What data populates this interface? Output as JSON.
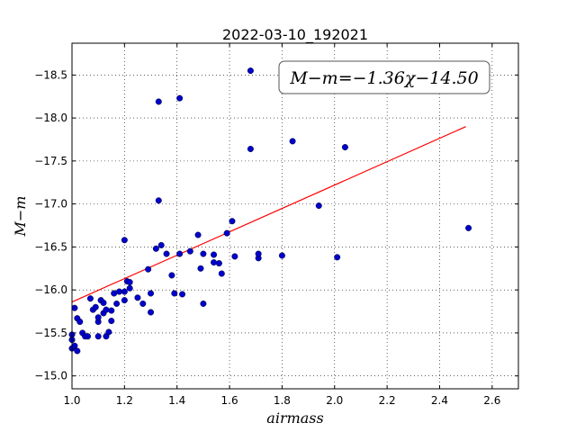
{
  "chart_data": {
    "type": "scatter",
    "title": "2022-03-10_192021",
    "xlabel": "airmass",
    "ylabel": "M−m",
    "xlim": [
      1.0,
      2.7
    ],
    "ylim": [
      -18.87,
      -14.85
    ],
    "y_inverted": true,
    "x_ticks": [
      1.0,
      1.2,
      1.4,
      1.6,
      1.8,
      2.0,
      2.2,
      2.4,
      2.6
    ],
    "x_tick_labels": [
      "1.0",
      "1.2",
      "1.4",
      "1.6",
      "1.8",
      "2.0",
      "2.2",
      "2.4",
      "2.6"
    ],
    "y_ticks": [
      -15.0,
      -15.5,
      -16.0,
      -16.5,
      -17.0,
      -17.5,
      -18.0,
      -18.5
    ],
    "y_tick_labels": [
      "−15.0",
      "−15.5",
      "−16.0",
      "−16.5",
      "−17.0",
      "−17.5",
      "−18.0",
      "−18.5"
    ],
    "grid": true,
    "annotation": "M−m=−1.36χ−14.50",
    "annotation_position": "top-right",
    "fit": {
      "slope": -1.36,
      "intercept": -14.5,
      "x_range": [
        1.0,
        2.5
      ],
      "color": "#ff0000"
    },
    "marker_color": "#0000cc",
    "points": [
      [
        1.0,
        -15.32
      ],
      [
        1.0,
        -15.42
      ],
      [
        1.01,
        -15.35
      ],
      [
        1.02,
        -15.29
      ],
      [
        1.0,
        -15.48
      ],
      [
        1.01,
        -15.79
      ],
      [
        1.02,
        -15.67
      ],
      [
        1.03,
        -15.63
      ],
      [
        1.04,
        -15.5
      ],
      [
        1.05,
        -15.46
      ],
      [
        1.06,
        -15.46
      ],
      [
        1.07,
        -15.9
      ],
      [
        1.08,
        -15.77
      ],
      [
        1.09,
        -15.8
      ],
      [
        1.1,
        -15.63
      ],
      [
        1.1,
        -15.68
      ],
      [
        1.1,
        -15.46
      ],
      [
        1.11,
        -15.88
      ],
      [
        1.12,
        -15.73
      ],
      [
        1.12,
        -15.85
      ],
      [
        1.13,
        -15.46
      ],
      [
        1.13,
        -15.77
      ],
      [
        1.14,
        -15.51
      ],
      [
        1.15,
        -15.64
      ],
      [
        1.15,
        -15.76
      ],
      [
        1.16,
        -15.96
      ],
      [
        1.17,
        -15.84
      ],
      [
        1.18,
        -15.98
      ],
      [
        1.2,
        -15.98
      ],
      [
        1.2,
        -15.88
      ],
      [
        1.21,
        -16.1
      ],
      [
        1.22,
        -16.02
      ],
      [
        1.22,
        -16.09
      ],
      [
        1.25,
        -15.91
      ],
      [
        1.27,
        -15.84
      ],
      [
        1.29,
        -16.24
      ],
      [
        1.3,
        -15.96
      ],
      [
        1.3,
        -15.74
      ],
      [
        1.32,
        -16.48
      ],
      [
        1.33,
        -17.04
      ],
      [
        1.34,
        -16.52
      ],
      [
        1.36,
        -16.42
      ],
      [
        1.38,
        -16.17
      ],
      [
        1.39,
        -15.96
      ],
      [
        1.41,
        -16.42
      ],
      [
        1.42,
        -15.95
      ],
      [
        1.45,
        -16.45
      ],
      [
        1.48,
        -16.64
      ],
      [
        1.49,
        -16.25
      ],
      [
        1.5,
        -16.42
      ],
      [
        1.5,
        -15.84
      ],
      [
        1.54,
        -16.32
      ],
      [
        1.54,
        -16.41
      ],
      [
        1.56,
        -16.31
      ],
      [
        1.57,
        -16.19
      ],
      [
        1.59,
        -16.66
      ],
      [
        1.61,
        -16.8
      ],
      [
        1.62,
        -16.39
      ],
      [
        1.2,
        -16.58
      ],
      [
        1.71,
        -16.37
      ],
      [
        1.71,
        -16.42
      ],
      [
        1.68,
        -17.64
      ],
      [
        1.8,
        -16.4
      ],
      [
        1.84,
        -17.73
      ],
      [
        1.94,
        -16.98
      ],
      [
        2.01,
        -16.38
      ],
      [
        2.04,
        -17.66
      ],
      [
        2.51,
        -16.72
      ],
      [
        1.33,
        -18.19
      ],
      [
        1.41,
        -18.23
      ],
      [
        1.68,
        -18.55
      ]
    ]
  }
}
